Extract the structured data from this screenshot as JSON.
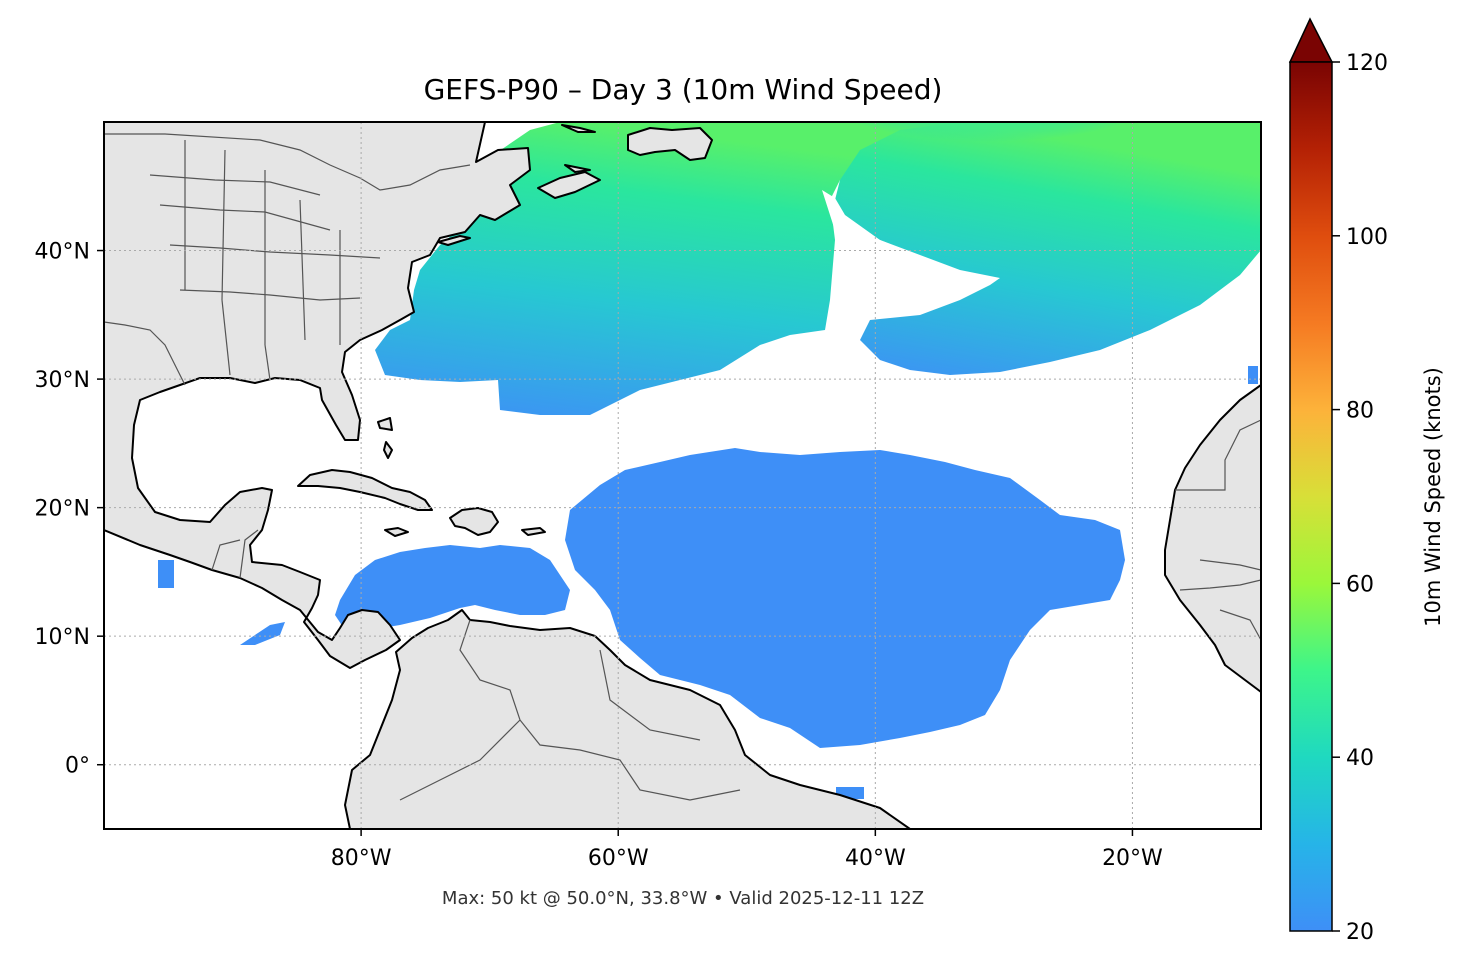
{
  "title": "GEFS-P90 – Day 3 (10m Wind Speed)",
  "footer": "Max: 50 kt @ 50.0°N, 33.8°W • Valid 2025-12-11 12Z",
  "map": {
    "lon_range": [
      -100,
      -10
    ],
    "lat_range": [
      -5,
      50
    ],
    "lon_ticks": [
      {
        "value": -80,
        "label": "80°W"
      },
      {
        "value": -60,
        "label": "60°W"
      },
      {
        "value": -40,
        "label": "40°W"
      },
      {
        "value": -20,
        "label": "20°W"
      }
    ],
    "lat_ticks": [
      {
        "value": 40,
        "label": "40°N"
      },
      {
        "value": 30,
        "label": "30°N"
      },
      {
        "value": 20,
        "label": "20°N"
      },
      {
        "value": 10,
        "label": "10°N"
      },
      {
        "value": 0,
        "label": "0°"
      }
    ],
    "grid": true,
    "land_color": "#e5e5e5",
    "ocean_color": "#ffffff",
    "max_marker": {
      "lat": 50.0,
      "lon": -33.8,
      "value": 50
    }
  },
  "colorbar": {
    "label": "10m Wind Speed (knots)",
    "range": [
      20,
      120
    ],
    "ticks": [
      {
        "value": 20,
        "label": "20"
      },
      {
        "value": 40,
        "label": "40"
      },
      {
        "value": 60,
        "label": "60"
      },
      {
        "value": 80,
        "label": "80"
      },
      {
        "value": 100,
        "label": "100"
      },
      {
        "value": 120,
        "label": "120"
      }
    ],
    "extend": "max",
    "extend_color": "#7a0403"
  },
  "colors": {
    "low": "#3e8ff7",
    "mid": "#1fd9c0",
    "high": "#8ef742"
  }
}
